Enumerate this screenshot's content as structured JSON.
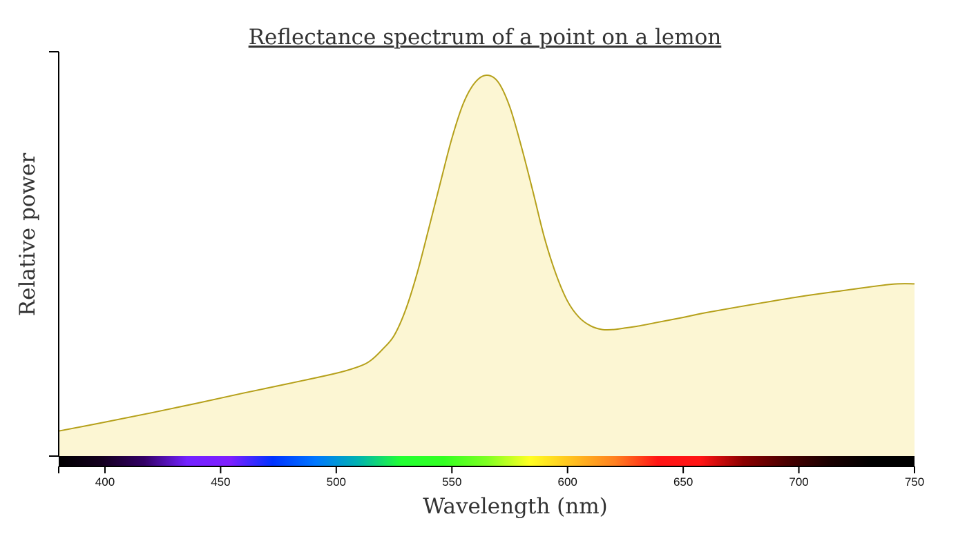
{
  "chart_data": {
    "type": "area",
    "title": "Reflectance spectrum of a point on a lemon",
    "xlabel": "Wavelength (nm)",
    "ylabel": "Relative power",
    "xlim": [
      380,
      750
    ],
    "ylim": [
      0,
      1
    ],
    "x_ticks": [
      400,
      450,
      500,
      550,
      600,
      650,
      700,
      750
    ],
    "grid": false,
    "series": [
      {
        "name": "reflectance",
        "x": [
          380,
          400,
          420,
          440,
          460,
          480,
          500,
          510,
          515,
          520,
          525,
          530,
          535,
          540,
          545,
          550,
          555,
          560,
          565,
          570,
          575,
          580,
          585,
          590,
          595,
          600,
          605,
          610,
          615,
          620,
          625,
          630,
          640,
          650,
          660,
          680,
          700,
          720,
          740,
          750
        ],
        "y": [
          0.062,
          0.084,
          0.107,
          0.131,
          0.156,
          0.18,
          0.205,
          0.222,
          0.237,
          0.264,
          0.298,
          0.362,
          0.453,
          0.563,
          0.676,
          0.786,
          0.873,
          0.924,
          0.942,
          0.925,
          0.864,
          0.766,
          0.655,
          0.54,
          0.45,
          0.383,
          0.343,
          0.322,
          0.313,
          0.313,
          0.317,
          0.321,
          0.332,
          0.343,
          0.355,
          0.375,
          0.394,
          0.41,
          0.425,
          0.426
        ]
      }
    ],
    "spectrum_bar_colors": [
      "#000000",
      "#14001f",
      "#330066",
      "#7322ff",
      "#7f1fff",
      "#0033ff",
      "#0077ff",
      "#00b3b0",
      "#22ff33",
      "#33ff22",
      "#7dff22",
      "#ffff22",
      "#ffc020",
      "#ff8020",
      "#ff1515",
      "#ff1515",
      "#8b0000",
      "#4a0000",
      "#1a0000",
      "#000000",
      "#000000"
    ],
    "curve_color": "#b5a01a",
    "fill_color": "#fcf6d3"
  }
}
